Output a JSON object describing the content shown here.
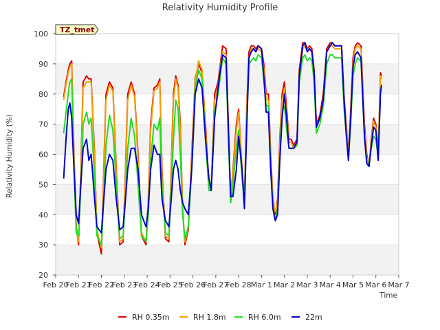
{
  "chart_data": {
    "type": "line",
    "title": "Relativity Humidity Profile",
    "xlabel": "Time",
    "ylabel": "Relativity Humidity (%)",
    "ylim": [
      20,
      100
    ],
    "yticks": [
      20,
      30,
      40,
      50,
      60,
      70,
      80,
      90,
      100
    ],
    "xlim": [
      0,
      15
    ],
    "xticks": [
      "Feb 20",
      "Feb 21",
      "Feb 22",
      "Feb 23",
      "Feb 24",
      "Feb 25",
      "Feb 26",
      "Feb 27",
      "Feb 28",
      "Mar 1",
      "Mar 2",
      "Mar 3",
      "Mar 4",
      "Mar 5",
      "Mar 6",
      "Mar 7"
    ],
    "x_units": "days since Feb 20",
    "grid": "horizontal bands",
    "badge": "TZ_tmet",
    "legend_position": "bottom",
    "series": [
      {
        "name": "RH 0.35m",
        "color": "#dd0000",
        "x": [
          0.35,
          0.45,
          0.55,
          0.62,
          0.7,
          0.8,
          0.9,
          1.0,
          1.1,
          1.2,
          1.35,
          1.45,
          1.55,
          1.7,
          1.8,
          2.0,
          2.1,
          2.2,
          2.35,
          2.5,
          2.65,
          2.8,
          2.95,
          3.05,
          3.15,
          3.3,
          3.45,
          3.6,
          3.75,
          3.95,
          4.05,
          4.15,
          4.3,
          4.45,
          4.55,
          4.65,
          4.8,
          4.95,
          5.05,
          5.15,
          5.25,
          5.35,
          5.45,
          5.55,
          5.65,
          5.8,
          5.95,
          6.1,
          6.25,
          6.4,
          6.55,
          6.7,
          6.8,
          6.95,
          7.1,
          7.2,
          7.3,
          7.45,
          7.55,
          7.65,
          7.75,
          7.9,
          8.0,
          8.15,
          8.25,
          8.35,
          8.45,
          8.55,
          8.65,
          8.75,
          8.85,
          9.0,
          9.1,
          9.2,
          9.3,
          9.4,
          9.5,
          9.6,
          9.7,
          9.8,
          9.9,
          10.0,
          10.1,
          10.2,
          10.3,
          10.4,
          10.55,
          10.65,
          10.8,
          10.9,
          11.0,
          11.1,
          11.2,
          11.3,
          11.4,
          11.55,
          11.7,
          11.85,
          12.0,
          12.1,
          12.2,
          12.35,
          12.5,
          12.6,
          12.7,
          12.8,
          12.9,
          13.0,
          13.1,
          13.2,
          13.35,
          13.5,
          13.6,
          13.7,
          13.8,
          13.9,
          14.0,
          14.1,
          14.2,
          14.25
        ],
        "values": [
          79,
          84,
          88,
          90,
          91,
          60,
          36,
          30,
          55,
          84,
          86,
          85,
          85,
          60,
          34,
          27,
          55,
          80,
          84,
          82,
          55,
          30,
          31,
          55,
          80,
          84,
          80,
          60,
          33,
          30,
          45,
          70,
          82,
          83,
          85,
          55,
          32,
          31,
          55,
          80,
          86,
          83,
          70,
          42,
          30,
          35,
          60,
          85,
          90,
          87,
          70,
          50,
          49,
          80,
          84,
          90,
          96,
          95,
          70,
          45,
          55,
          70,
          75,
          55,
          45,
          75,
          94,
          96,
          96,
          95,
          96,
          95,
          90,
          80,
          80,
          60,
          45,
          40,
          45,
          65,
          80,
          84,
          75,
          65,
          65,
          63,
          65,
          88,
          97,
          97,
          95,
          96,
          95,
          88,
          70,
          73,
          80,
          95,
          97,
          97,
          96,
          96,
          96,
          80,
          70,
          60,
          75,
          92,
          96,
          97,
          96,
          70,
          60,
          56,
          65,
          72,
          70,
          60,
          87,
          86
        ]
      },
      {
        "name": "RH 1.8m",
        "color": "#f5a000",
        "x": [
          0.35,
          0.45,
          0.55,
          0.62,
          0.7,
          0.8,
          0.9,
          1.0,
          1.1,
          1.2,
          1.35,
          1.45,
          1.55,
          1.7,
          1.8,
          2.0,
          2.1,
          2.2,
          2.35,
          2.5,
          2.65,
          2.8,
          2.95,
          3.05,
          3.15,
          3.3,
          3.45,
          3.6,
          3.75,
          3.95,
          4.05,
          4.15,
          4.3,
          4.45,
          4.55,
          4.65,
          4.8,
          4.95,
          5.05,
          5.15,
          5.25,
          5.35,
          5.45,
          5.55,
          5.65,
          5.8,
          5.95,
          6.1,
          6.25,
          6.4,
          6.55,
          6.7,
          6.8,
          6.95,
          7.1,
          7.2,
          7.3,
          7.45,
          7.55,
          7.65,
          7.75,
          7.9,
          8.0,
          8.15,
          8.25,
          8.35,
          8.45,
          8.55,
          8.65,
          8.75,
          8.85,
          9.0,
          9.1,
          9.2,
          9.3,
          9.4,
          9.5,
          9.6,
          9.7,
          9.8,
          9.9,
          10.0,
          10.1,
          10.2,
          10.3,
          10.4,
          10.55,
          10.65,
          10.8,
          10.9,
          11.0,
          11.1,
          11.2,
          11.3,
          11.4,
          11.55,
          11.7,
          11.85,
          12.0,
          12.1,
          12.2,
          12.35,
          12.5,
          12.6,
          12.7,
          12.8,
          12.9,
          13.0,
          13.1,
          13.2,
          13.35,
          13.5,
          13.6,
          13.7,
          13.8,
          13.9,
          14.0,
          14.1,
          14.2,
          14.25
        ],
        "values": [
          78,
          83,
          87,
          89,
          90,
          58,
          35,
          31,
          53,
          82,
          84,
          84,
          84,
          58,
          35,
          29,
          53,
          78,
          83,
          81,
          53,
          31,
          32,
          53,
          78,
          83,
          79,
          58,
          34,
          31,
          44,
          68,
          81,
          82,
          84,
          53,
          33,
          32,
          53,
          78,
          85,
          82,
          68,
          41,
          31,
          36,
          58,
          84,
          91,
          88,
          68,
          49,
          50,
          78,
          82,
          89,
          94,
          93,
          68,
          44,
          54,
          68,
          74,
          54,
          44,
          73,
          92,
          95,
          95,
          94,
          95,
          94,
          88,
          78,
          78,
          58,
          44,
          41,
          44,
          63,
          78,
          82,
          73,
          64,
          64,
          62,
          64,
          86,
          95,
          96,
          94,
          95,
          94,
          86,
          69,
          72,
          78,
          94,
          96,
          96,
          95,
          95,
          95,
          78,
          69,
          59,
          73,
          90,
          95,
          96,
          95,
          68,
          59,
          57,
          64,
          71,
          69,
          59,
          86,
          85
        ]
      },
      {
        "name": "RH 6.0m",
        "color": "#22dd22",
        "x": [
          0.35,
          0.45,
          0.55,
          0.62,
          0.7,
          0.8,
          0.9,
          1.0,
          1.1,
          1.2,
          1.35,
          1.45,
          1.55,
          1.7,
          1.8,
          2.0,
          2.1,
          2.2,
          2.35,
          2.5,
          2.65,
          2.8,
          2.95,
          3.05,
          3.15,
          3.3,
          3.45,
          3.6,
          3.75,
          3.95,
          4.05,
          4.15,
          4.3,
          4.45,
          4.55,
          4.65,
          4.8,
          4.95,
          5.05,
          5.15,
          5.25,
          5.35,
          5.45,
          5.55,
          5.65,
          5.8,
          5.95,
          6.1,
          6.25,
          6.4,
          6.55,
          6.7,
          6.8,
          6.95,
          7.1,
          7.2,
          7.3,
          7.45,
          7.55,
          7.65,
          7.75,
          7.9,
          8.0,
          8.15,
          8.25,
          8.35,
          8.45,
          8.55,
          8.65,
          8.75,
          8.85,
          9.0,
          9.1,
          9.2,
          9.3,
          9.4,
          9.5,
          9.6,
          9.7,
          9.8,
          9.9,
          10.0,
          10.1,
          10.2,
          10.3,
          10.4,
          10.55,
          10.65,
          10.8,
          10.9,
          11.0,
          11.1,
          11.2,
          11.3,
          11.4,
          11.55,
          11.7,
          11.85,
          12.0,
          12.1,
          12.2,
          12.35,
          12.5,
          12.6,
          12.7,
          12.8,
          12.9,
          13.0,
          13.1,
          13.2,
          13.35,
          13.5,
          13.6,
          13.7,
          13.8,
          13.9,
          14.0,
          14.1,
          14.2,
          14.25
        ],
        "values": [
          67,
          74,
          80,
          84,
          85,
          55,
          34,
          33,
          50,
          70,
          74,
          70,
          72,
          52,
          33,
          30,
          45,
          63,
          73,
          68,
          50,
          32,
          33,
          45,
          62,
          72,
          66,
          50,
          33,
          31,
          40,
          58,
          70,
          68,
          72,
          48,
          34,
          33,
          48,
          65,
          78,
          75,
          60,
          40,
          32,
          36,
          55,
          82,
          88,
          85,
          65,
          48,
          48,
          74,
          80,
          86,
          92,
          90,
          65,
          44,
          50,
          62,
          68,
          52,
          44,
          70,
          90,
          91,
          92,
          91,
          93,
          92,
          85,
          76,
          76,
          56,
          42,
          38,
          42,
          60,
          74,
          76,
          68,
          62,
          62,
          62,
          63,
          84,
          92,
          93,
          91,
          92,
          91,
          84,
          67,
          70,
          76,
          90,
          93,
          93,
          92,
          92,
          92,
          76,
          67,
          58,
          70,
          86,
          90,
          92,
          91,
          66,
          58,
          57,
          62,
          66,
          65,
          59,
          82,
          82
        ]
      },
      {
        "name": "22m",
        "color": "#0000cc",
        "x": [
          0.35,
          0.45,
          0.55,
          0.62,
          0.7,
          0.8,
          0.9,
          1.0,
          1.1,
          1.2,
          1.35,
          1.45,
          1.55,
          1.7,
          1.8,
          2.0,
          2.1,
          2.2,
          2.35,
          2.5,
          2.65,
          2.8,
          2.95,
          3.05,
          3.15,
          3.3,
          3.45,
          3.6,
          3.75,
          3.95,
          4.05,
          4.15,
          4.3,
          4.45,
          4.55,
          4.65,
          4.8,
          4.95,
          5.05,
          5.15,
          5.25,
          5.35,
          5.45,
          5.55,
          5.65,
          5.8,
          5.95,
          6.1,
          6.25,
          6.4,
          6.55,
          6.7,
          6.8,
          6.95,
          7.1,
          7.2,
          7.3,
          7.45,
          7.55,
          7.65,
          7.75,
          7.9,
          8.0,
          8.15,
          8.25,
          8.35,
          8.45,
          8.55,
          8.65,
          8.75,
          8.85,
          9.0,
          9.1,
          9.2,
          9.3,
          9.4,
          9.5,
          9.6,
          9.7,
          9.8,
          9.9,
          10.0,
          10.1,
          10.2,
          10.3,
          10.4,
          10.55,
          10.65,
          10.8,
          10.9,
          11.0,
          11.1,
          11.2,
          11.3,
          11.4,
          11.55,
          11.7,
          11.85,
          12.0,
          12.1,
          12.2,
          12.35,
          12.5,
          12.6,
          12.7,
          12.8,
          12.9,
          13.0,
          13.1,
          13.2,
          13.35,
          13.5,
          13.6,
          13.7,
          13.8,
          13.9,
          14.0,
          14.1,
          14.2,
          14.25
        ],
        "values": [
          52,
          65,
          75,
          77,
          72,
          55,
          40,
          37,
          50,
          62,
          65,
          58,
          60,
          45,
          36,
          34,
          45,
          55,
          60,
          58,
          45,
          35,
          36,
          45,
          55,
          62,
          62,
          55,
          40,
          36,
          42,
          55,
          63,
          60,
          60,
          45,
          38,
          36,
          45,
          55,
          58,
          55,
          48,
          44,
          42,
          40,
          55,
          80,
          85,
          82,
          65,
          52,
          48,
          72,
          82,
          88,
          93,
          92,
          68,
          46,
          46,
          55,
          66,
          55,
          42,
          68,
          92,
          94,
          95,
          94,
          96,
          95,
          86,
          74,
          74,
          55,
          42,
          38,
          40,
          58,
          72,
          80,
          72,
          62,
          62,
          62,
          64,
          86,
          96,
          97,
          94,
          95,
          94,
          87,
          69,
          72,
          78,
          94,
          96,
          97,
          96,
          96,
          96,
          79,
          67,
          58,
          72,
          89,
          93,
          94,
          92,
          66,
          57,
          56,
          63,
          69,
          68,
          58,
          80,
          83
        ]
      }
    ]
  }
}
